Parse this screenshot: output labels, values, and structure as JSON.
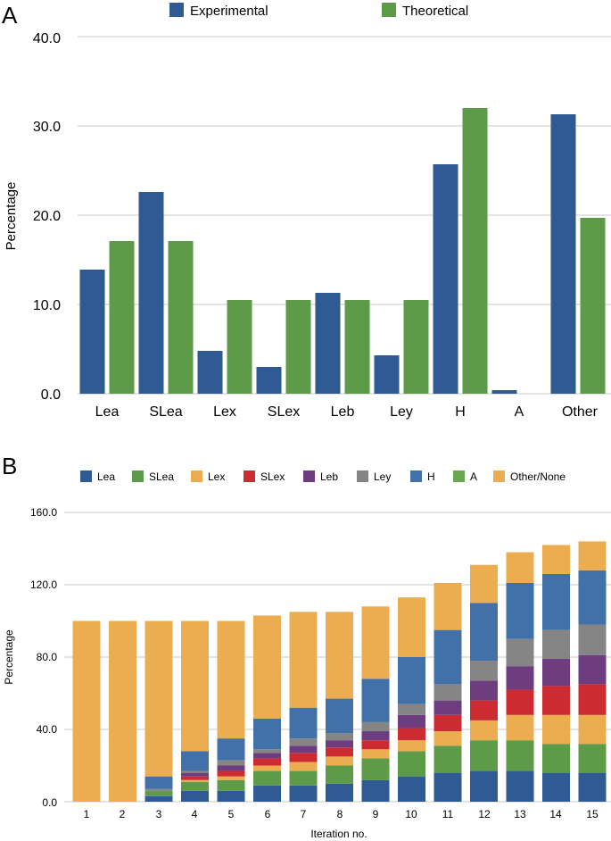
{
  "chart_data": [
    {
      "panel_label": "A",
      "type": "bar",
      "categories": [
        "Lea",
        "SLea",
        "Lex",
        "SLex",
        "Leb",
        "Ley",
        "H",
        "A",
        "Other"
      ],
      "series": [
        {
          "name": "Experimental",
          "color": "#2f5a93",
          "values": [
            13.9,
            22.6,
            4.8,
            3.0,
            11.3,
            4.3,
            25.7,
            0.4,
            31.3
          ]
        },
        {
          "name": "Theoretical",
          "color": "#5e9b48",
          "values": [
            17.1,
            17.1,
            10.5,
            10.5,
            10.5,
            10.5,
            32.0,
            0.0,
            19.7
          ]
        }
      ],
      "title": "",
      "xlabel": "",
      "ylabel": "Percentage",
      "ylim": [
        0,
        40
      ],
      "yticks": [
        "0.0",
        "10.0",
        "20.0",
        "30.0",
        "40.0"
      ],
      "legend": "top",
      "grid": true
    },
    {
      "panel_label": "B",
      "type": "bar",
      "stacked": true,
      "categories": [
        "1",
        "2",
        "3",
        "4",
        "5",
        "6",
        "7",
        "8",
        "9",
        "10",
        "11",
        "12",
        "13",
        "14",
        "15"
      ],
      "series": [
        {
          "name": "Lea",
          "color": "#2f5a93",
          "values": [
            0,
            0,
            3,
            6,
            6,
            9,
            9,
            10,
            12,
            14,
            16,
            17,
            17,
            16,
            16
          ]
        },
        {
          "name": "SLea",
          "color": "#5e9b48",
          "values": [
            0,
            0,
            3,
            5,
            6,
            8,
            8,
            10,
            12,
            14,
            15,
            17,
            17,
            16,
            16
          ]
        },
        {
          "name": "Lex",
          "color": "#ebad50",
          "values": [
            0,
            0,
            0,
            1,
            2,
            3,
            5,
            5,
            5,
            6,
            8,
            11,
            14,
            16,
            16
          ]
        },
        {
          "name": "SLex",
          "color": "#cc2b31",
          "values": [
            0,
            0,
            0,
            2,
            3,
            4,
            5,
            5,
            5,
            7,
            9,
            11,
            14,
            16,
            17
          ]
        },
        {
          "name": "Leb",
          "color": "#6d3d80",
          "values": [
            0,
            0,
            0,
            2,
            3,
            3,
            4,
            4,
            5,
            7,
            8,
            11,
            13,
            15,
            16
          ]
        },
        {
          "name": "Ley",
          "color": "#858585",
          "values": [
            0,
            0,
            1,
            1,
            3,
            2,
            4,
            4,
            5,
            6,
            9,
            11,
            15,
            16,
            17
          ]
        },
        {
          "name": "H",
          "color": "#4270a8",
          "values": [
            0,
            0,
            7,
            11,
            12,
            17,
            17,
            19,
            24,
            26,
            30,
            32,
            31,
            31,
            30
          ]
        },
        {
          "name": "A",
          "color": "#6aa84f",
          "values": [
            0,
            0,
            0,
            0,
            0,
            0,
            0,
            0,
            0,
            0,
            0,
            0,
            0,
            0,
            0
          ]
        },
        {
          "name": "Other/None",
          "color": "#ebad50",
          "values": [
            100,
            100,
            86,
            72,
            65,
            57,
            53,
            48,
            40,
            33,
            26,
            21,
            17,
            16,
            16
          ]
        }
      ],
      "title": "",
      "xlabel": "Iteration no.",
      "ylabel": "Percentage",
      "ylim": [
        0,
        160
      ],
      "yticks": [
        "0.0",
        "40.0",
        "80.0",
        "120.0",
        "160.0"
      ],
      "legend": "top",
      "grid": true
    }
  ]
}
